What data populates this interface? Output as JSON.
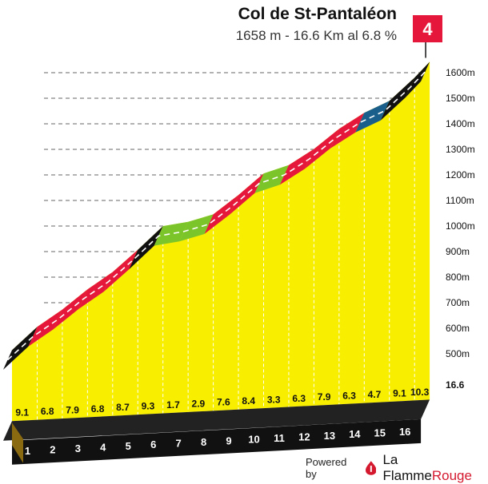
{
  "header": {
    "title": "Col de St-Pantaléon",
    "subtitle": "1658 m - 16.6 Km al 6.8 %"
  },
  "category_badge": "4",
  "footer": {
    "powered_by": "Powered by",
    "brand_part1": "La Flamme",
    "brand_part2": "Rouge"
  },
  "chart_data": {
    "type": "area",
    "title": "Col de St-Pantaléon",
    "subtitle": "1658 m - 16.6 Km al 6.8 %",
    "x_unit": "km",
    "km_markers": [
      "1",
      "2",
      "3",
      "4",
      "5",
      "6",
      "7",
      "8",
      "9",
      "10",
      "11",
      "12",
      "13",
      "14",
      "15",
      "16"
    ],
    "end_km_label": "16.6",
    "segments": [
      {
        "km_start": 0,
        "km_end": 1,
        "gradient": 9.1,
        "label": "9.1",
        "color": "#111111"
      },
      {
        "km_start": 1,
        "km_end": 2,
        "gradient": 6.8,
        "label": "6.8",
        "color": "#e5173a"
      },
      {
        "km_start": 2,
        "km_end": 3,
        "gradient": 7.9,
        "label": "7.9",
        "color": "#e5173a"
      },
      {
        "km_start": 3,
        "km_end": 4,
        "gradient": 6.8,
        "label": "6.8",
        "color": "#e5173a"
      },
      {
        "km_start": 4,
        "km_end": 5,
        "gradient": 8.7,
        "label": "8.7",
        "color": "#e5173a"
      },
      {
        "km_start": 5,
        "km_end": 6,
        "gradient": 9.3,
        "label": "9.3",
        "color": "#111111"
      },
      {
        "km_start": 6,
        "km_end": 7,
        "gradient": 1.7,
        "label": "1.7",
        "color": "#7bc52a"
      },
      {
        "km_start": 7,
        "km_end": 8,
        "gradient": 2.9,
        "label": "2.9",
        "color": "#7bc52a"
      },
      {
        "km_start": 8,
        "km_end": 9,
        "gradient": 7.6,
        "label": "7.6",
        "color": "#e5173a"
      },
      {
        "km_start": 9,
        "km_end": 10,
        "gradient": 8.4,
        "label": "8.4",
        "color": "#e5173a"
      },
      {
        "km_start": 10,
        "km_end": 11,
        "gradient": 3.3,
        "label": "3.3",
        "color": "#7bc52a"
      },
      {
        "km_start": 11,
        "km_end": 12,
        "gradient": 6.3,
        "label": "6.3",
        "color": "#e5173a"
      },
      {
        "km_start": 12,
        "km_end": 13,
        "gradient": 7.9,
        "label": "7.9",
        "color": "#e5173a"
      },
      {
        "km_start": 13,
        "km_end": 14,
        "gradient": 6.3,
        "label": "6.3",
        "color": "#e5173a"
      },
      {
        "km_start": 14,
        "km_end": 15,
        "gradient": 4.7,
        "label": "4.7",
        "color": "#1a5f8c"
      },
      {
        "km_start": 15,
        "km_end": 16,
        "gradient": 9.1,
        "label": "9.1",
        "color": "#111111"
      },
      {
        "km_start": 16,
        "km_end": 16.6,
        "gradient": 10.3,
        "label": "10.3",
        "color": "#111111"
      }
    ],
    "altitude": {
      "start": 530,
      "end": 1658,
      "ticks": [
        "500m",
        "600m",
        "700m",
        "800m",
        "900m",
        "1000m",
        "1100m",
        "1200m",
        "1300m",
        "1400m",
        "1500m",
        "1600m"
      ],
      "tick_values": [
        500,
        600,
        700,
        800,
        900,
        1000,
        1100,
        1200,
        1300,
        1400,
        1500,
        1600
      ]
    },
    "colors": {
      "fill": "#f7ee00",
      "base_top": "#222222",
      "base_front": "#111111",
      "base_side": "#8a6a10",
      "road_black": "#111111",
      "road_red": "#e5173a",
      "road_green": "#7bc52a",
      "road_blue": "#1a5f8c",
      "badge": "#e5173a"
    }
  }
}
